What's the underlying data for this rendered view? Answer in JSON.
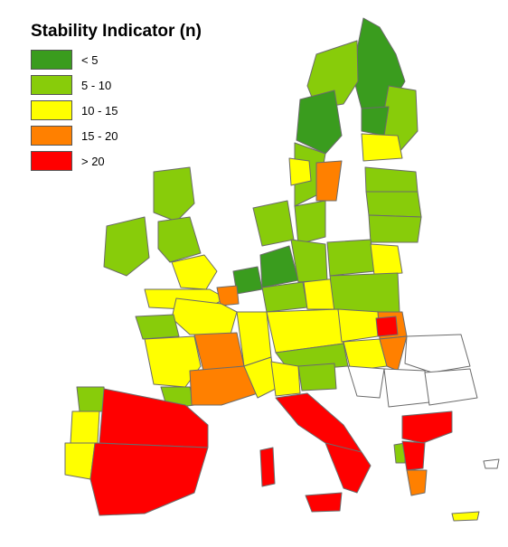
{
  "legend": {
    "title": "Stability Indicator (n)",
    "items": [
      {
        "label": "< 5",
        "color": "#3a9c1e"
      },
      {
        "label": "5 - 10",
        "color": "#88cc0a"
      },
      {
        "label": "10 - 15",
        "color": "#ffff00"
      },
      {
        "label": "15 - 20",
        "color": "#ff8000"
      },
      {
        "label": "> 20",
        "color": "#ff0000"
      }
    ]
  },
  "colors": {
    "no_data": "#ffffff",
    "border": "#6b6b6b"
  }
}
